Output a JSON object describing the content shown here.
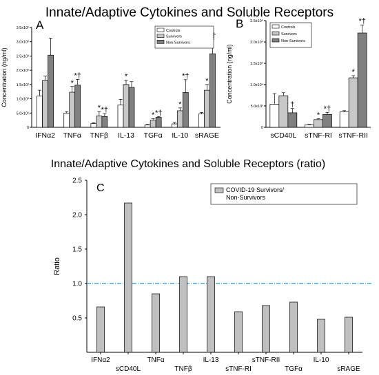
{
  "figure": {
    "title_top": "Innate/Adaptive Cytokines and Soluble Receptors",
    "title_bottom": "Innate/Adaptive Cytokines and Soluble Receptors (ratio)"
  },
  "colors": {
    "controls": "#ffffff",
    "survivors": "#c8c8c8",
    "non_survivors": "#808080",
    "ratio_bar": "#c0c0c0",
    "reference_line": "#1f9ad6"
  },
  "chart_data": [
    {
      "panel": "A",
      "type": "bar",
      "ylabel": "Concentration  (ng/ml)",
      "ylim": [
        0,
        350
      ],
      "yticks": [
        0,
        50,
        100,
        150,
        200,
        250,
        300,
        350
      ],
      "ytick_labels": [
        "0",
        "5.0x10¹",
        "1.0x10²",
        "1.5x10²",
        "2.0x10²",
        "2.5x10²",
        "3.0x10²",
        "3.5x10²"
      ],
      "categories": [
        "IFNα2",
        "TNFα",
        "TNFβ",
        "IL-13",
        "TGFα",
        "IL-10",
        "sRAGE"
      ],
      "legend": [
        "Controls",
        "Survivors",
        "Non-Survivors"
      ],
      "legend_position": "top-right",
      "series": [
        {
          "name": "Controls",
          "values": [
            110,
            50,
            13,
            78,
            8,
            12,
            47
          ],
          "err": [
            20,
            5,
            3,
            20,
            2,
            5,
            5
          ]
        },
        {
          "name": "Survivors",
          "values": [
            165,
            123,
            40,
            150,
            25,
            58,
            130
          ],
          "err": [
            15,
            20,
            15,
            15,
            5,
            10,
            20
          ]
        },
        {
          "name": "Non-Survivors",
          "values": [
            253,
            148,
            38,
            140,
            35,
            122,
            258
          ],
          "err": [
            60,
            20,
            10,
            20,
            3,
            45,
            50
          ]
        }
      ],
      "annotations": [
        {
          "category": "TNFα",
          "series": "Survivors",
          "text": "*"
        },
        {
          "category": "TNFα",
          "series": "Non-Survivors",
          "text": "*†"
        },
        {
          "category": "TNFβ",
          "series": "Survivors",
          "text": "*"
        },
        {
          "category": "TNFβ",
          "series": "Non-Survivors",
          "text": "*†"
        },
        {
          "category": "IL-13",
          "series": "Survivors",
          "text": "*"
        },
        {
          "category": "TGFα",
          "series": "Survivors",
          "text": "*"
        },
        {
          "category": "TGFα",
          "series": "Non-Survivors",
          "text": "*†"
        },
        {
          "category": "IL-10",
          "series": "Survivors",
          "text": "*"
        },
        {
          "category": "IL-10",
          "series": "Non-Survivors",
          "text": "*†"
        },
        {
          "category": "sRAGE",
          "series": "Survivors",
          "text": "*"
        },
        {
          "category": "sRAGE",
          "series": "Non-Survivors",
          "text": "*†"
        }
      ]
    },
    {
      "panel": "B",
      "type": "bar",
      "ylabel": "Concentration  (ng/ml)",
      "ylim": [
        0,
        25000
      ],
      "yticks": [
        0,
        5000,
        10000,
        15000,
        20000,
        25000
      ],
      "ytick_labels": [
        "0",
        "5.0x10³",
        "1.0x10⁴",
        "1.5x10⁴",
        "2.0x10⁴",
        "2.5x10⁴"
      ],
      "categories": [
        "sCD40L",
        "sTNF-RI",
        "sTNF-RII"
      ],
      "legend": [
        "Controls",
        "Survivors",
        "Non-Survivors"
      ],
      "legend_position": "top-left",
      "series": [
        {
          "name": "Controls",
          "values": [
            5400,
            600,
            3600
          ],
          "err": [
            2500,
            100,
            300
          ]
        },
        {
          "name": "Survivors",
          "values": [
            7400,
            1800,
            11600
          ],
          "err": [
            700,
            200,
            500
          ]
        },
        {
          "name": "Non-Survivors",
          "values": [
            3400,
            3000,
            22100
          ],
          "err": [
            1000,
            500,
            1900
          ]
        }
      ],
      "annotations": [
        {
          "category": "sCD40L",
          "series": "Non-Survivors",
          "text": "†"
        },
        {
          "category": "sTNF-RI",
          "series": "Survivors",
          "text": "*"
        },
        {
          "category": "sTNF-RI",
          "series": "Non-Survivors",
          "text": "*†"
        },
        {
          "category": "sTNF-RII",
          "series": "Survivors",
          "text": "*"
        },
        {
          "category": "sTNF-RII",
          "series": "Non-Survivors",
          "text": "*†"
        }
      ]
    },
    {
      "panel": "C",
      "type": "bar",
      "ylabel": "Ratio",
      "ylim": [
        0,
        2.5
      ],
      "yticks": [
        0.5,
        1.0,
        1.5,
        2.0,
        2.5
      ],
      "ytick_labels": [
        "0.5",
        "1.0",
        "1.5",
        "2.0",
        "2.5"
      ],
      "categories": [
        "IFNα2",
        "sCD40L",
        "TNFα",
        "TNFβ",
        "IL-13",
        "sTNF-RI",
        "sTNF-RII",
        "TGFα",
        "IL-10",
        "sRAGE"
      ],
      "legend": [
        "COVID-19 Survivors/Non-Survivors"
      ],
      "legend_position": "top-right",
      "reference_line": 1.0,
      "series": [
        {
          "name": "COVID-19 Survivors/Non-Survivors",
          "values": [
            0.66,
            2.17,
            0.85,
            1.1,
            1.1,
            0.59,
            0.68,
            0.73,
            0.48,
            0.51
          ]
        }
      ]
    }
  ]
}
